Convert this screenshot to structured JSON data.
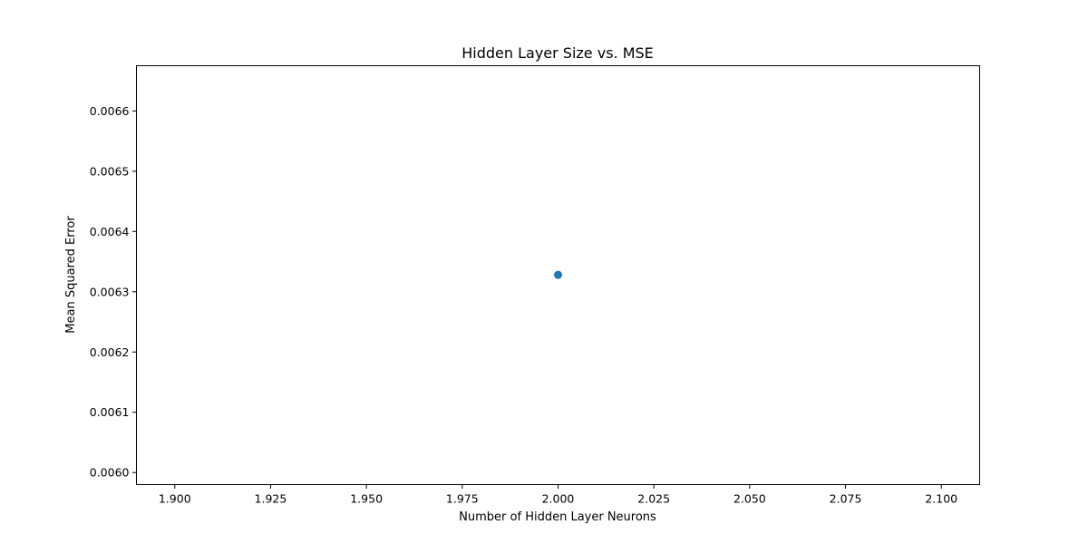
{
  "chart_data": {
    "type": "scatter",
    "title": "Hidden Layer Size vs. MSE",
    "xlabel": "Number of Hidden Layer Neurons",
    "ylabel": "Mean Squared Error",
    "xlim": [
      1.89,
      2.11
    ],
    "ylim": [
      0.00598,
      0.006675
    ],
    "xticks": [
      "1.900",
      "1.925",
      "1.950",
      "1.975",
      "2.000",
      "2.025",
      "2.050",
      "2.075",
      "2.100"
    ],
    "yticks": [
      "0.0060",
      "0.0061",
      "0.0062",
      "0.0063",
      "0.0064",
      "0.0065",
      "0.0066"
    ],
    "grid": false,
    "series": [
      {
        "color": "#1f77b4",
        "points": [
          {
            "x": 2.0,
            "y": 0.006328
          }
        ]
      }
    ]
  }
}
